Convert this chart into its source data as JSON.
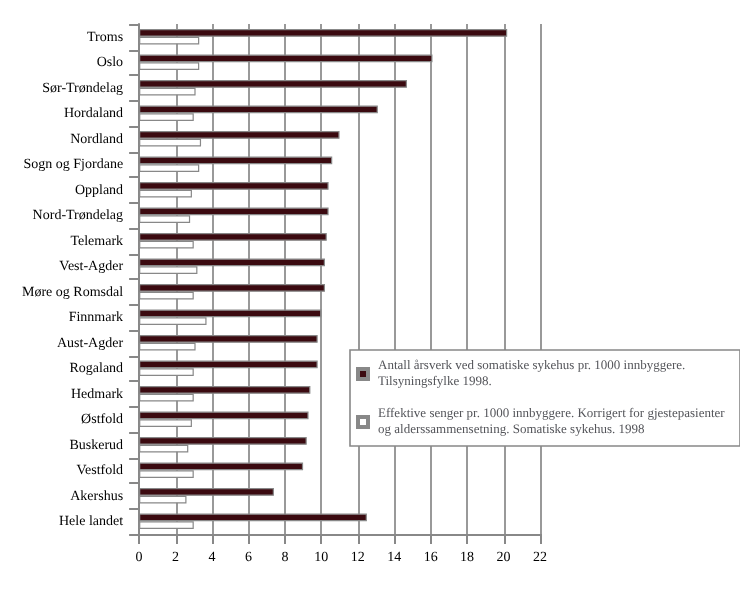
{
  "chart_data": {
    "type": "bar",
    "orientation": "horizontal",
    "categories": [
      "Troms",
      "Oslo",
      "Sør-Trøndelag",
      "Hordaland",
      "Nordland",
      "Sogn og Fjordane",
      "Oppland",
      "Nord-Trøndelag",
      "Telemark",
      "Vest-Agder",
      "Møre og Romsdal",
      "Finnmark",
      "Aust-Agder",
      "Rogaland",
      "Hedmark",
      "Østfold",
      "Buskerud",
      "Vestfold",
      "Akershus",
      "Hele landet"
    ],
    "series": [
      {
        "name": "Antall årsverk ved somatiske sykehus pr. 1000 innbyggere. Tilsyningsfylke 1998.",
        "color": "#3b0a10",
        "values": [
          20.2,
          16.1,
          14.7,
          13.1,
          11.0,
          10.6,
          10.4,
          10.4,
          10.3,
          10.2,
          10.2,
          10.0,
          9.8,
          9.8,
          9.4,
          9.3,
          9.2,
          9.0,
          7.4,
          12.5
        ]
      },
      {
        "name": "Effektive senger pr. 1000 innbyggere. Korrigert for gjestepasienter og alderssammensetning. Somatiske sykehus. 1998",
        "color": "#ffffff",
        "values": [
          3.3,
          3.3,
          3.1,
          3.0,
          3.4,
          3.3,
          2.9,
          2.8,
          3.0,
          3.2,
          3.0,
          3.7,
          3.1,
          3.0,
          3.0,
          2.9,
          2.7,
          3.0,
          2.6,
          3.0
        ]
      }
    ],
    "xlim": [
      0,
      22
    ],
    "xticks": [
      0,
      2,
      4,
      6,
      8,
      10,
      12,
      14,
      16,
      18,
      20,
      22
    ],
    "grid": "x",
    "legend": "right"
  }
}
